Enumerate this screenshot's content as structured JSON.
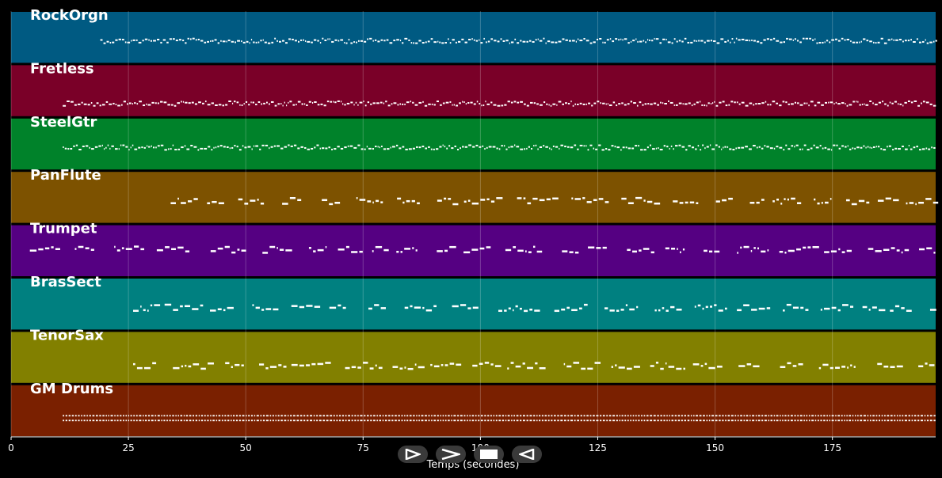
{
  "chart_data": {
    "type": "piano-roll",
    "xlabel": "Temps (secondes)",
    "xlim": [
      0,
      197
    ],
    "xticks": [
      0,
      25,
      50,
      75,
      100,
      125,
      150,
      175
    ],
    "grid": true,
    "tracks": [
      {
        "name": "RockOrgn",
        "color": "#005a82",
        "start": 19,
        "end": 197,
        "density": "dense",
        "pitch_level": 0.55
      },
      {
        "name": "Fretless",
        "color": "#7a0028",
        "start": 11,
        "end": 197,
        "density": "dense",
        "pitch_level": 0.75
      },
      {
        "name": "SteelGtr",
        "color": "#00822a",
        "start": 11,
        "end": 197,
        "density": "dense",
        "pitch_level": 0.55
      },
      {
        "name": "PanFlute",
        "color": "#7d5200",
        "start": 34,
        "end": 197,
        "density": "phrased",
        "pitch_level": 0.55
      },
      {
        "name": "Trumpet",
        "color": "#550082",
        "start": 4,
        "end": 197,
        "density": "phrased",
        "pitch_level": 0.45
      },
      {
        "name": "BrasSect",
        "color": "#008080",
        "start": 26,
        "end": 197,
        "density": "phrased",
        "pitch_level": 0.55
      },
      {
        "name": "TenorSax",
        "color": "#828000",
        "start": 26,
        "end": 197,
        "density": "phrased",
        "pitch_level": 0.65
      },
      {
        "name": "GM Drums",
        "color": "#7a2000",
        "start": 11,
        "end": 197,
        "density": "drums",
        "pitch_level": 0.65
      }
    ]
  },
  "controls": {
    "play_icon": "play-icon",
    "forward_icon": "forward-icon",
    "stop_icon": "stop-icon",
    "rewind_icon": "rewind-icon"
  }
}
